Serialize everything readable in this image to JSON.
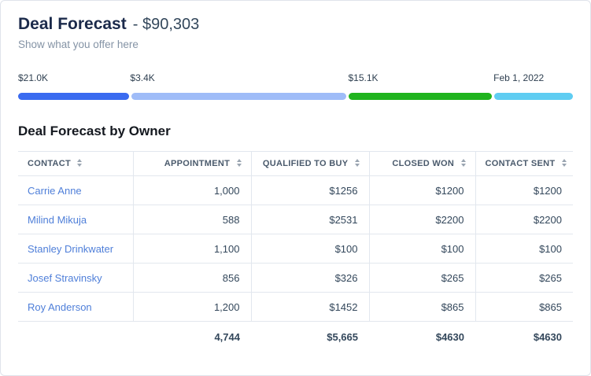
{
  "header": {
    "title": "Deal Forecast",
    "amount": "- $90,303",
    "subtitle": "Show what you offer here"
  },
  "progress": {
    "segments": [
      {
        "label": "$21.0K",
        "color": "#3a6bf0",
        "width_pct": 20.2
      },
      {
        "label": "$3.4K",
        "color": "#9fbcf8",
        "width_pct": 39.3
      },
      {
        "label": "$15.1K",
        "color": "#20b41e",
        "width_pct": 26.2
      },
      {
        "label": "Feb 1, 2022",
        "color": "#5fcdf2",
        "width_pct": 14.3
      }
    ]
  },
  "table": {
    "title": "Deal Forecast by Owner",
    "columns": [
      "CONTACT",
      "APPOINTMENT",
      "QUALIFIED TO BUY",
      "CLOSED WON",
      "CONTACT SENT"
    ],
    "rows": [
      {
        "contact": "Carrie Anne",
        "appointment": "1,000",
        "qualified": "$1256",
        "closed": "$1200",
        "sent": "$1200"
      },
      {
        "contact": "Milind Mikuja",
        "appointment": "588",
        "qualified": "$2531",
        "closed": "$2200",
        "sent": "$2200"
      },
      {
        "contact": "Stanley Drinkwater",
        "appointment": "1,100",
        "qualified": "$100",
        "closed": "$100",
        "sent": "$100"
      },
      {
        "contact": "Josef Stravinsky",
        "appointment": "856",
        "qualified": "$326",
        "closed": "$265",
        "sent": "$265"
      },
      {
        "contact": "Roy Anderson",
        "appointment": "1,200",
        "qualified": "$1452",
        "closed": "$865",
        "sent": "$865"
      }
    ],
    "totals": {
      "appointment": "4,744",
      "qualified": "$5,665",
      "closed": "$4630",
      "sent": "$4630"
    }
  }
}
